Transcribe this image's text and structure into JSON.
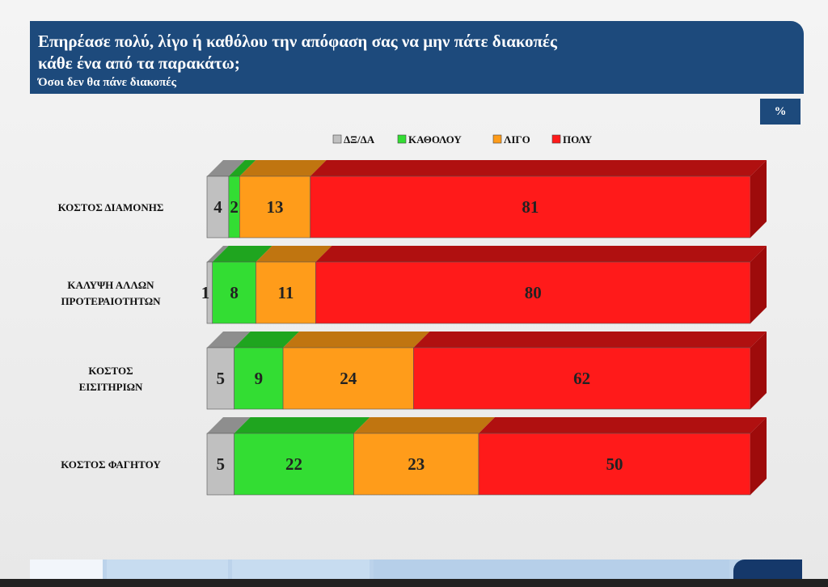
{
  "header": {
    "title_line1": "Επηρέασε πολύ, λίγο ή καθόλου την απόφαση σας να μην πάτε διακοπές",
    "title_line2": "κάθε ένα από τα παρακάτω;",
    "subtitle": "Όσοι δεν θα πάνε διακοπές"
  },
  "unit_badge": "%",
  "chart_data": {
    "type": "bar",
    "orientation": "horizontal",
    "stacked": true,
    "three_d": true,
    "legend_position": "top-center",
    "categories": [
      [
        "ΚΟΣΤΟΣ ΔΙΑΜΟΝΗΣ"
      ],
      [
        "ΚΑΛΥΨΗ ΑΛΛΩΝ",
        "ΠΡΟΤΕΡΑΙΟΤΗΤΩΝ"
      ],
      [
        "ΚΟΣΤΟΣ",
        "ΕΙΣΙΤΗΡΙΩΝ"
      ],
      [
        "ΚΟΣΤΟΣ ΦΑΓΗΤΟΥ"
      ]
    ],
    "series": [
      {
        "name": "ΔΞ/ΔΑ",
        "color": "#c0c0c0",
        "top_color": "#8e8e8e",
        "side_color": "#9a9a9a",
        "values": [
          4,
          1,
          5,
          5
        ]
      },
      {
        "name": "ΚΑΘΟΛΟΥ",
        "color": "#33dd33",
        "top_color": "#1fa51f",
        "side_color": "#1c9a1c",
        "values": [
          2,
          8,
          9,
          22
        ]
      },
      {
        "name": "ΛΙΓΟ",
        "color": "#ff9c1a",
        "top_color": "#c07510",
        "side_color": "#c07510",
        "values": [
          13,
          11,
          24,
          23
        ]
      },
      {
        "name": "ΠΟΛΥ",
        "color": "#ff1a1a",
        "top_color": "#b01010",
        "side_color": "#9e0b0b",
        "values": [
          81,
          80,
          62,
          50
        ]
      }
    ]
  }
}
